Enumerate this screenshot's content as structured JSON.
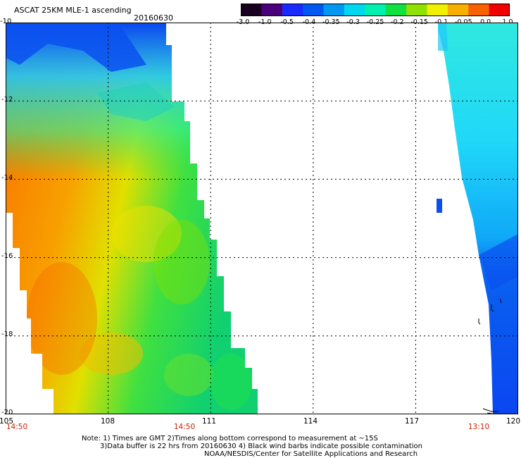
{
  "header": {
    "title": "ASCAT 25KM MLE-1 ascending",
    "date": "20160630"
  },
  "colorbar": {
    "labels": [
      "-3.0",
      "-1.0",
      "-0.5",
      "-0.4",
      "-0.35",
      "-0.3",
      "-0.25",
      "-0.2",
      "-0.15",
      "-0.1",
      "-0.05",
      "0.0",
      "1.0"
    ],
    "colors": [
      "#1a0020",
      "#4a007a",
      "#1a2aff",
      "#0058f0",
      "#0098f0",
      "#00d8f0",
      "#00f0b0",
      "#10e040",
      "#90e000",
      "#f0f000",
      "#f8b000",
      "#f86000",
      "#f00000"
    ]
  },
  "map": {
    "lat_labels": [
      "-10",
      "-12",
      "-14",
      "-16",
      "-18",
      "-20"
    ],
    "lon_labels": [
      "105",
      "108",
      "111",
      "114",
      "117",
      "120"
    ],
    "pass_times": [
      "14:50",
      "14:50",
      "13:10"
    ],
    "palette": {
      "deep_blue": "#0a46f0",
      "light_blue": "#20c8f8",
      "cyan": "#20f0e0",
      "green": "#20e060",
      "yellow": "#f0f000",
      "orange": "#f87000"
    },
    "wind_barbs_visible": true
  },
  "notes": {
    "line1": "Note: 1) Times are GMT 2)Times along bottom correspond to measurement at ~15S",
    "line2": "3)Data buffer is 22 hrs from 20160630 4) Black wind barbs indicate possible contamination",
    "line3": "NOAA/NESDIS/Center for Satellite Applications and Research"
  }
}
